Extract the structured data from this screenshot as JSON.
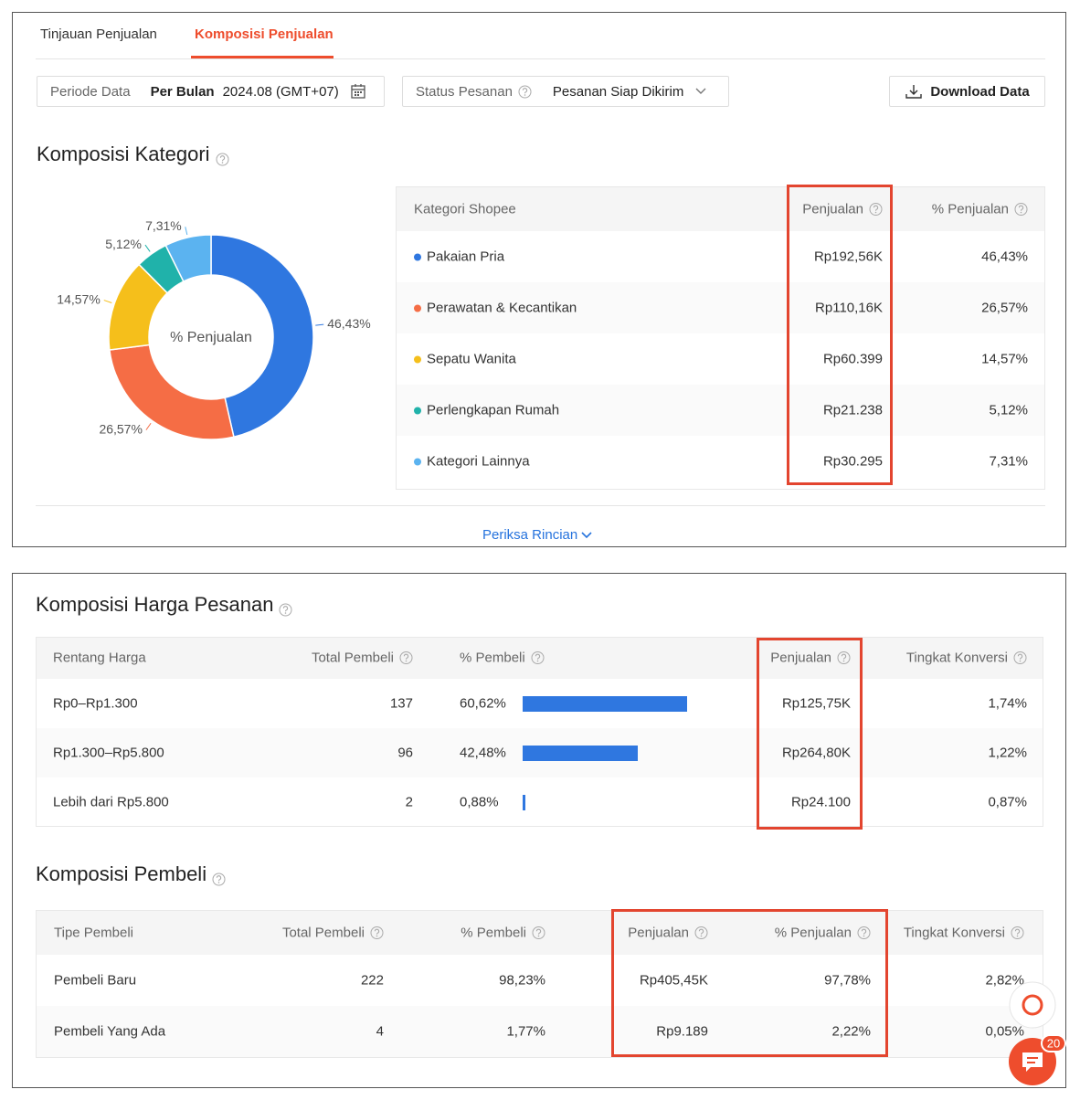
{
  "tabs": {
    "overview": "Tinjauan Penjualan",
    "composition": "Komposisi Penjualan"
  },
  "filters": {
    "period_label": "Periode Data",
    "period_type": "Per Bulan",
    "period_value": "2024.08 (GMT+07)",
    "status_label": "Status Pesanan",
    "status_value": "Pesanan Siap Dikirim",
    "download": "Download Data"
  },
  "category": {
    "title": "Komposisi Kategori",
    "chart_data": {
      "type": "pie",
      "donut": true,
      "center_label": "% Penjualan",
      "categories": [
        "Pakaian Pria",
        "Perawatan & Kecantikan",
        "Sepatu Wanita",
        "Perlengkapan Rumah",
        "Kategori Lainnya"
      ],
      "values": [
        46.43,
        26.57,
        14.57,
        5.12,
        7.31
      ],
      "value_labels": [
        "46,43%",
        "26,57%",
        "14,57%",
        "5,12%",
        "7,31%"
      ],
      "colors": [
        "#2f77e0",
        "#f56d45",
        "#f5bf1b",
        "#20b2aa",
        "#5bb3f0"
      ]
    },
    "table": {
      "headers": [
        "Kategori Shopee",
        "Penjualan",
        "% Penjualan"
      ],
      "sales": [
        "Rp192,56K",
        "Rp110,16K",
        "Rp60.399",
        "Rp21.238",
        "Rp30.295"
      ]
    },
    "details_link": "Periksa Rincian"
  },
  "price": {
    "title": "Komposisi Harga Pesanan",
    "headers": [
      "Rentang Harga",
      "Total Pembeli",
      "% Pembeli",
      "Penjualan",
      "Tingkat Konversi"
    ],
    "rows": [
      {
        "range": "Rp0–Rp1.300",
        "buyers": 137,
        "buyer_pct": 60.62,
        "buyer_pct_label": "60,62%",
        "sales": "Rp125,75K",
        "conversion": "1,74%"
      },
      {
        "range": "Rp1.300–Rp5.800",
        "buyers": 96,
        "buyer_pct": 42.48,
        "buyer_pct_label": "42,48%",
        "sales": "Rp264,80K",
        "conversion": "1,22%"
      },
      {
        "range": "Lebih dari Rp5.800",
        "buyers": 2,
        "buyer_pct": 0.88,
        "buyer_pct_label": "0,88%",
        "sales": "Rp24.100",
        "conversion": "0,87%"
      }
    ]
  },
  "buyer": {
    "title": "Komposisi Pembeli",
    "headers": [
      "Tipe Pembeli",
      "Total Pembeli",
      "% Pembeli",
      "Penjualan",
      "% Penjualan",
      "Tingkat Konversi"
    ],
    "rows": [
      [
        "Pembeli Baru",
        222,
        "98,23%",
        "Rp405,45K",
        "97,78%",
        "2,82%"
      ],
      [
        "Pembeli Yang Ada",
        4,
        "1,77%",
        "Rp9.189",
        "2,22%",
        "0,05%"
      ]
    ]
  },
  "chat_badge": 20
}
